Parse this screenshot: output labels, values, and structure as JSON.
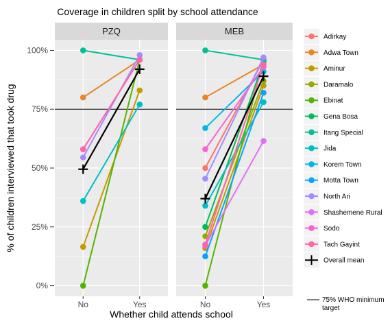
{
  "chart_data": {
    "type": "line",
    "title": "Coverage  in children split by school attendance",
    "xlabel": "Whether child attends school",
    "ylabel": "% of children interviewed that took drug",
    "categories": [
      "No",
      "Yes"
    ],
    "yticks": [
      "0%",
      "25%",
      "50%",
      "75%",
      "100%"
    ],
    "ylim": [
      0,
      100
    ],
    "grid": true,
    "legend_position": "right",
    "reference_line": {
      "value": 75,
      "label": "75% WHO minimum target"
    },
    "mean_label": "Overall mean",
    "panels": [
      {
        "name": "PZQ",
        "series": [
          {
            "name": "Adwa Town",
            "values": [
              80,
              96
            ]
          },
          {
            "name": "Aminur",
            "values": [
              16.5,
              83
            ]
          },
          {
            "name": "Ebinat",
            "values": [
              0,
              96
            ]
          },
          {
            "name": "Itang Special",
            "values": [
              100,
              96
            ]
          },
          {
            "name": "Jida",
            "values": [
              36,
              77
            ]
          },
          {
            "name": "North Ari",
            "values": [
              54.5,
              98
            ]
          },
          {
            "name": "Sodo",
            "values": [
              58,
              96
            ]
          },
          {
            "name": "Tach Gayint",
            "values": [
              58,
              96
            ]
          }
        ],
        "mean": [
          49.5,
          92
        ]
      },
      {
        "name": "MEB",
        "series": [
          {
            "name": "Adirkay",
            "values": [
              50,
              96
            ]
          },
          {
            "name": "Adwa Town",
            "values": [
              80,
              94
            ]
          },
          {
            "name": "Aminur",
            "values": [
              16,
              85
            ]
          },
          {
            "name": "Daramalo",
            "values": [
              21,
              87
            ]
          },
          {
            "name": "Ebinat",
            "values": [
              0,
              96
            ]
          },
          {
            "name": "Gena Bosa",
            "values": [
              25,
              95
            ]
          },
          {
            "name": "Itang Special",
            "values": [
              100,
              96
            ]
          },
          {
            "name": "Jida",
            "values": [
              34,
              78
            ]
          },
          {
            "name": "Korem Town",
            "values": [
              67,
              91
            ]
          },
          {
            "name": "Motta Town",
            "values": [
              12.5,
              82
            ]
          },
          {
            "name": "North Ari",
            "values": [
              45.5,
              97
            ]
          },
          {
            "name": "Shashemene Rural",
            "values": [
              17,
              61.5
            ]
          },
          {
            "name": "Sodo",
            "values": [
              58,
              93
            ]
          },
          {
            "name": "Tach Gayint",
            "values": [
              17.5,
              94
            ]
          }
        ],
        "mean": [
          37,
          89
        ]
      }
    ],
    "legend": [
      {
        "name": "Adirkay",
        "color": "#F8766D"
      },
      {
        "name": "Adwa Town",
        "color": "#E88526"
      },
      {
        "name": "Aminur",
        "color": "#C49A00"
      },
      {
        "name": "Daramalo",
        "color": "#99A800"
      },
      {
        "name": "Ebinat",
        "color": "#53B400"
      },
      {
        "name": "Gena Bosa",
        "color": "#00BC56"
      },
      {
        "name": "Itang Special",
        "color": "#00C094"
      },
      {
        "name": "Jida",
        "color": "#00BFC4"
      },
      {
        "name": "Korem Town",
        "color": "#00B6EB"
      },
      {
        "name": "Motta Town",
        "color": "#06A4FF"
      },
      {
        "name": "North Ari",
        "color": "#A58AFF"
      },
      {
        "name": "Shashemene Rural",
        "color": "#DF70F8"
      },
      {
        "name": "Sodo",
        "color": "#FB61D7"
      },
      {
        "name": "Tach Gayint",
        "color": "#FF66A8"
      }
    ]
  }
}
